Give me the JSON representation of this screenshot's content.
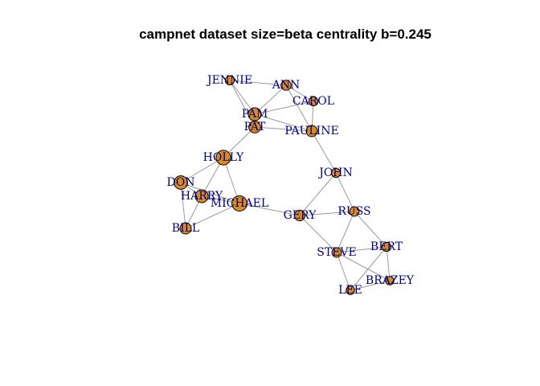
{
  "title": "campnet dataset size=beta centrality b=0.245",
  "colors": {
    "node_fill": "#d98a1e",
    "node_stroke": "#000000",
    "edge": "#9a9a9a",
    "label": "#00008b",
    "title": "#000000"
  },
  "nodes": [
    {
      "id": "JENNIE",
      "label": "JENNIE",
      "centrality": 0.3
    },
    {
      "id": "ANN",
      "label": "ANN",
      "centrality": 0.4
    },
    {
      "id": "CAROL",
      "label": "CAROL",
      "centrality": 0.3
    },
    {
      "id": "PAM",
      "label": "PAM",
      "centrality": 0.65
    },
    {
      "id": "PAT",
      "label": "PAT",
      "centrality": 0.55
    },
    {
      "id": "PAULINE",
      "label": "PAULINE",
      "centrality": 0.5
    },
    {
      "id": "HOLLY",
      "label": "HOLLY",
      "centrality": 0.8
    },
    {
      "id": "DON",
      "label": "DON",
      "centrality": 0.7
    },
    {
      "id": "HARRY",
      "label": "HARRY",
      "centrality": 0.65
    },
    {
      "id": "MICHAEL",
      "label": "MICHAEL",
      "centrality": 0.85
    },
    {
      "id": "BILL",
      "label": "BILL",
      "centrality": 0.5
    },
    {
      "id": "JOHN",
      "label": "JOHN",
      "centrality": 0.3
    },
    {
      "id": "GERY",
      "label": "GERY",
      "centrality": 0.45
    },
    {
      "id": "RUSS",
      "label": "RUSS",
      "centrality": 0.35
    },
    {
      "id": "STEVE",
      "label": "STEVE",
      "centrality": 0.35
    },
    {
      "id": "BERT",
      "label": "BERT",
      "centrality": 0.3
    },
    {
      "id": "BRAZEY",
      "label": "BRAZEY",
      "centrality": 0.25
    },
    {
      "id": "LEE",
      "label": "LEE",
      "centrality": 0.25
    }
  ],
  "edges": [
    [
      "JENNIE",
      "ANN"
    ],
    [
      "JENNIE",
      "PAM"
    ],
    [
      "JENNIE",
      "PAT"
    ],
    [
      "ANN",
      "PAM"
    ],
    [
      "ANN",
      "CAROL"
    ],
    [
      "ANN",
      "PAULINE"
    ],
    [
      "CAROL",
      "PAM"
    ],
    [
      "CAROL",
      "PAULINE"
    ],
    [
      "PAM",
      "PAULINE"
    ],
    [
      "PAM",
      "PAT"
    ],
    [
      "PAT",
      "PAULINE"
    ],
    [
      "PAT",
      "HOLLY"
    ],
    [
      "PAULINE",
      "JOHN"
    ],
    [
      "HOLLY",
      "DON"
    ],
    [
      "HOLLY",
      "HARRY"
    ],
    [
      "HOLLY",
      "MICHAEL"
    ],
    [
      "DON",
      "HARRY"
    ],
    [
      "DON",
      "MICHAEL"
    ],
    [
      "DON",
      "BILL"
    ],
    [
      "HARRY",
      "MICHAEL"
    ],
    [
      "HARRY",
      "BILL"
    ],
    [
      "MICHAEL",
      "BILL"
    ],
    [
      "MICHAEL",
      "GERY"
    ],
    [
      "GERY",
      "JOHN"
    ],
    [
      "GERY",
      "RUSS"
    ],
    [
      "GERY",
      "STEVE"
    ],
    [
      "JOHN",
      "RUSS"
    ],
    [
      "RUSS",
      "STEVE"
    ],
    [
      "RUSS",
      "BERT"
    ],
    [
      "STEVE",
      "BERT"
    ],
    [
      "STEVE",
      "BRAZEY"
    ],
    [
      "STEVE",
      "LEE"
    ],
    [
      "BERT",
      "BRAZEY"
    ],
    [
      "BERT",
      "LEE"
    ],
    [
      "BRAZEY",
      "LEE"
    ]
  ]
}
